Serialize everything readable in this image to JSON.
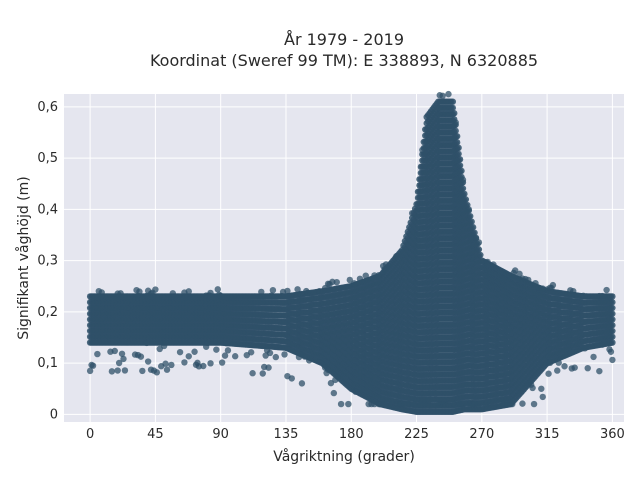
{
  "chart_data": {
    "type": "scatter",
    "title": "År 1979 - 2019",
    "subtitle": "Koordinat (Sweref 99 TM): E 338893, N 6320885",
    "xlabel": "Vågriktning (grader)",
    "ylabel": "Signifikant våghöjd (m)",
    "xlim": [
      -18,
      368
    ],
    "ylim": [
      -0.015,
      0.625
    ],
    "x_ticks": [
      0,
      45,
      90,
      135,
      180,
      225,
      270,
      315,
      360
    ],
    "y_ticks": [
      0,
      0.1,
      0.2,
      0.3,
      0.4,
      0.5,
      0.6
    ],
    "y_tick_labels": [
      "0",
      "0,1",
      "0,2",
      "0,3",
      "0,4",
      "0,5",
      "0,6"
    ],
    "grid": true,
    "background": "#e5e6ef",
    "point_color": "#2f5068",
    "series": [
      {
        "envelope": [
          {
            "x": 0,
            "y_min": 0.14,
            "y_max": 0.23
          },
          {
            "x": 45,
            "y_min": 0.14,
            "y_max": 0.23
          },
          {
            "x": 90,
            "y_min": 0.14,
            "y_max": 0.23
          },
          {
            "x": 135,
            "y_min": 0.13,
            "y_max": 0.23
          },
          {
            "x": 160,
            "y_min": 0.1,
            "y_max": 0.24
          },
          {
            "x": 180,
            "y_min": 0.05,
            "y_max": 0.25
          },
          {
            "x": 200,
            "y_min": 0.02,
            "y_max": 0.27
          },
          {
            "x": 215,
            "y_min": 0.01,
            "y_max": 0.32
          },
          {
            "x": 225,
            "y_min": 0.005,
            "y_max": 0.41
          },
          {
            "x": 232,
            "y_min": 0.005,
            "y_max": 0.58
          },
          {
            "x": 240,
            "y_min": 0.005,
            "y_max": 0.61
          },
          {
            "x": 250,
            "y_min": 0.005,
            "y_max": 0.61
          },
          {
            "x": 258,
            "y_min": 0.01,
            "y_max": 0.43
          },
          {
            "x": 270,
            "y_min": 0.01,
            "y_max": 0.3
          },
          {
            "x": 290,
            "y_min": 0.02,
            "y_max": 0.27
          },
          {
            "x": 315,
            "y_min": 0.1,
            "y_max": 0.24
          },
          {
            "x": 340,
            "y_min": 0.13,
            "y_max": 0.23
          },
          {
            "x": 360,
            "y_min": 0.14,
            "y_max": 0.23
          }
        ]
      }
    ]
  }
}
